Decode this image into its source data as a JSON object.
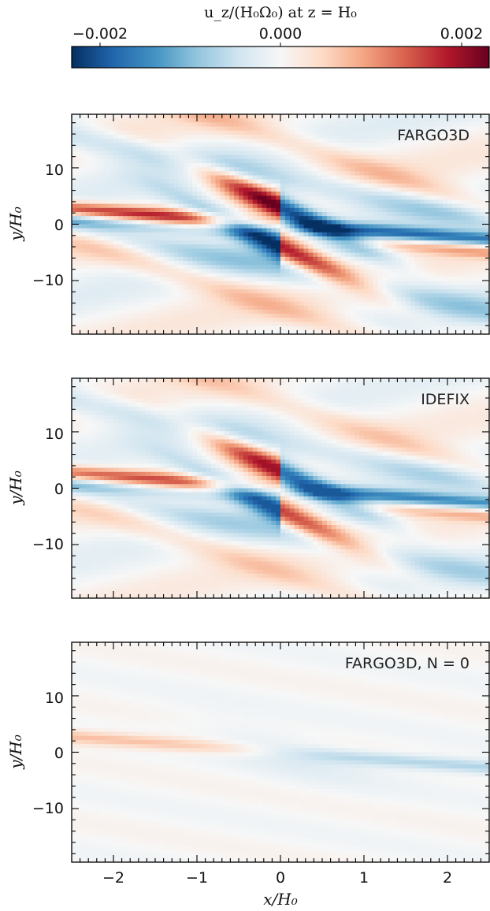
{
  "colorbar": {
    "title": "u_z/(H₀Ω₀) at z = H₀",
    "tick_labels": [
      "−0.002",
      "0.000",
      "0.002"
    ],
    "range": [
      -0.002,
      0.002
    ],
    "colormap": "RdBu_r"
  },
  "chart_data": [
    {
      "type": "heatmap",
      "panel_label": "FARGO3D",
      "xlabel": "",
      "ylabel": "y/H₀",
      "xlim": [
        -2.5,
        2.5
      ],
      "ylim": [
        -19.5,
        19.5
      ],
      "yticks": [
        10,
        0,
        -10
      ],
      "ytick_labels": [
        "10",
        "0",
        "−10"
      ],
      "xticks": [],
      "value_range": [
        -0.002,
        0.002
      ],
      "amplitude": 1.0
    },
    {
      "type": "heatmap",
      "panel_label": "IDEFIX",
      "xlabel": "",
      "ylabel": "y/H₀",
      "xlim": [
        -2.5,
        2.5
      ],
      "ylim": [
        -19.5,
        19.5
      ],
      "yticks": [
        10,
        0,
        -10
      ],
      "ytick_labels": [
        "10",
        "0",
        "−10"
      ],
      "xticks": [],
      "value_range": [
        -0.002,
        0.002
      ],
      "amplitude": 0.85
    },
    {
      "type": "heatmap",
      "panel_label": "FARGO3D, N = 0",
      "xlabel": "x/H₀",
      "ylabel": "y/H₀",
      "xlim": [
        -2.5,
        2.5
      ],
      "ylim": [
        -19.5,
        19.5
      ],
      "yticks": [
        10,
        0,
        -10
      ],
      "ytick_labels": [
        "10",
        "0",
        "−10"
      ],
      "xticks": [
        -2,
        -1,
        0,
        1,
        2
      ],
      "xtick_labels": [
        "−2",
        "−1",
        "0",
        "1",
        "2"
      ],
      "value_range": [
        -0.002,
        0.002
      ],
      "amplitude": 0.45
    }
  ]
}
